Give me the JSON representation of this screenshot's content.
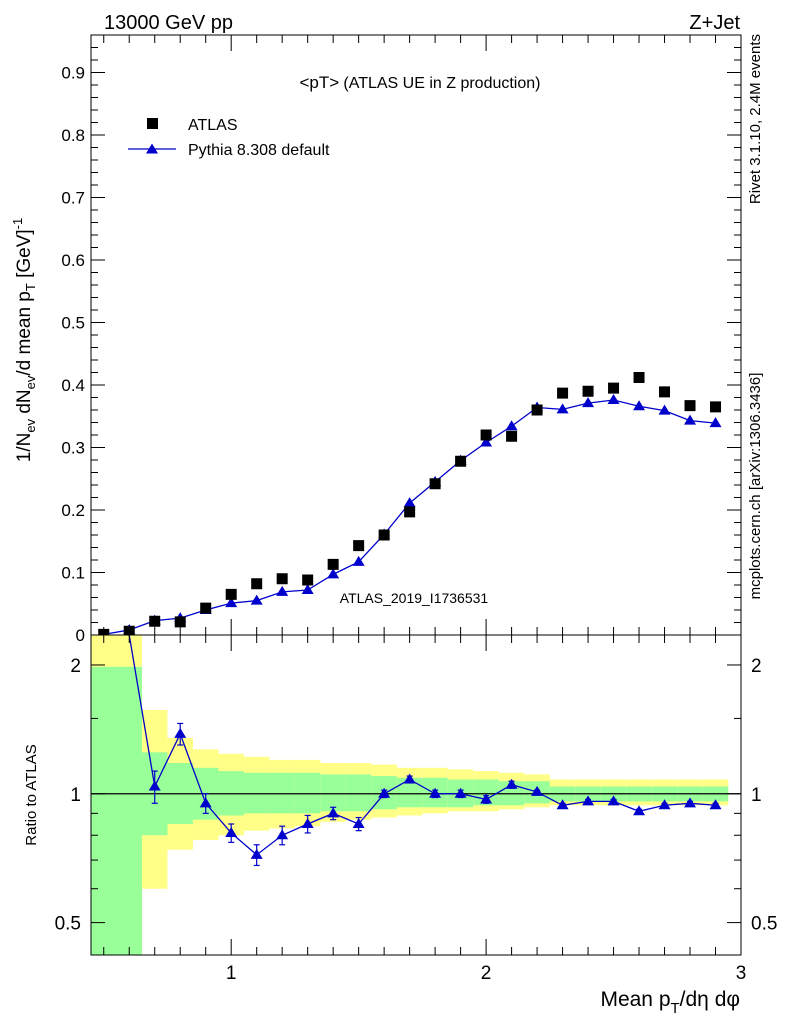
{
  "header": {
    "left": "13000 GeV pp",
    "right": "Z+Jet"
  },
  "side_labels": {
    "rivet": "Rivet 3.1.10,  2.4M events",
    "mcplots": "mcplots.cern.ch [arXiv:1306.3436]"
  },
  "watermark": "ATLAS_2019_I1736531",
  "colors": {
    "data": "#000000",
    "mc": "#0000cc",
    "band_inner": "#99ff99",
    "band_outer": "#ffff88"
  },
  "chart_data": [
    {
      "type": "scatter",
      "title": "<pT>",
      "subtitle": "(ATLAS UE in Z production)",
      "ylabel": "1/N_ev dN_ev/d mean p_T [GeV]^-1",
      "xlabel": "",
      "xlim": [
        0.45,
        3.0
      ],
      "ylim": [
        0,
        0.96
      ],
      "yticks": [
        0,
        0.1,
        0.2,
        0.3,
        0.4,
        0.5,
        0.6,
        0.7,
        0.8,
        0.9
      ],
      "ytick_labels": [
        "0",
        "0.1",
        "0.2",
        "0.3",
        "0.4",
        "0.5",
        "0.6",
        "0.7",
        "0.8",
        "0.9"
      ],
      "legend_placement": "top-left",
      "x": [
        0.5,
        0.6,
        0.7,
        0.8,
        0.9,
        1.0,
        1.1,
        1.2,
        1.3,
        1.4,
        1.5,
        1.6,
        1.7,
        1.8,
        1.9,
        2.0,
        2.1,
        2.2,
        2.3,
        2.4,
        2.5,
        2.6,
        2.7,
        2.8,
        2.9
      ],
      "series": [
        {
          "name": "ATLAS",
          "marker": "square",
          "values": [
            0.001,
            0.006,
            0.022,
            0.021,
            0.043,
            0.065,
            0.082,
            0.09,
            0.088,
            0.113,
            0.143,
            0.16,
            0.197,
            0.242,
            0.278,
            0.32,
            0.318,
            0.36,
            0.387,
            0.39,
            0.395,
            0.412,
            0.389,
            0.367,
            0.365
          ]
        },
        {
          "name": "Pythia 8.308 default",
          "marker": "triangle",
          "values": [
            0.001,
            0.008,
            0.023,
            0.027,
            0.04,
            0.051,
            0.055,
            0.069,
            0.072,
            0.097,
            0.117,
            0.161,
            0.211,
            0.245,
            0.279,
            0.308,
            0.334,
            0.364,
            0.361,
            0.371,
            0.376,
            0.366,
            0.359,
            0.343,
            0.339
          ]
        }
      ]
    },
    {
      "type": "line",
      "ylabel": "Ratio to ATLAS",
      "xlabel": "Mean p_T/dη dφ",
      "xlim": [
        0.45,
        3.0
      ],
      "ylim": [
        0.42,
        2.35
      ],
      "log_y": true,
      "yticks": [
        0.5,
        1,
        2
      ],
      "ytick_labels": [
        "0.5",
        "1",
        "2"
      ],
      "xticks": [
        1,
        2,
        3
      ],
      "xtick_labels": [
        "1",
        "2",
        "3"
      ],
      "bin_edges": [
        0.45,
        0.55,
        0.65,
        0.75,
        0.85,
        0.95,
        1.05,
        1.15,
        1.25,
        1.35,
        1.45,
        1.55,
        1.65,
        1.75,
        1.85,
        1.95,
        2.05,
        2.15,
        2.25,
        2.35,
        2.45,
        2.55,
        2.65,
        2.75,
        2.85,
        2.95
      ],
      "band_inner_hi": [
        1.98,
        1.98,
        1.25,
        1.18,
        1.15,
        1.13,
        1.12,
        1.12,
        1.12,
        1.11,
        1.11,
        1.1,
        1.09,
        1.09,
        1.08,
        1.08,
        1.07,
        1.07,
        1.04,
        1.04,
        1.04,
        1.04,
        1.04,
        1.04,
        1.04
      ],
      "band_inner_lo": [
        0.3,
        0.3,
        0.8,
        0.85,
        0.87,
        0.89,
        0.9,
        0.9,
        0.9,
        0.91,
        0.91,
        0.92,
        0.93,
        0.93,
        0.93,
        0.94,
        0.94,
        0.95,
        0.96,
        0.96,
        0.96,
        0.96,
        0.96,
        0.96,
        0.96
      ],
      "band_outer_hi": [
        2.5,
        2.5,
        1.57,
        1.35,
        1.27,
        1.24,
        1.22,
        1.2,
        1.2,
        1.18,
        1.18,
        1.17,
        1.15,
        1.15,
        1.14,
        1.13,
        1.12,
        1.11,
        1.08,
        1.08,
        1.08,
        1.08,
        1.08,
        1.08,
        1.08
      ],
      "band_outer_lo": [
        0.3,
        0.3,
        0.6,
        0.74,
        0.78,
        0.8,
        0.82,
        0.83,
        0.84,
        0.86,
        0.87,
        0.88,
        0.89,
        0.9,
        0.91,
        0.91,
        0.92,
        0.93,
        0.94,
        0.94,
        0.94,
        0.94,
        0.94,
        0.94,
        0.94
      ],
      "x": [
        0.5,
        0.6,
        0.7,
        0.8,
        0.9,
        1.0,
        1.1,
        1.2,
        1.3,
        1.4,
        1.5,
        1.6,
        1.7,
        1.8,
        1.9,
        2.0,
        2.1,
        2.2,
        2.3,
        2.4,
        2.5,
        2.6,
        2.7,
        2.8,
        2.9
      ],
      "series": [
        {
          "name": "Pythia 8.308 default",
          "values": [
            null,
            3.0,
            1.04,
            1.38,
            0.95,
            0.81,
            0.72,
            0.8,
            0.85,
            0.9,
            0.85,
            1.0,
            1.08,
            1.0,
            1.0,
            0.97,
            1.05,
            1.01,
            0.94,
            0.96,
            0.96,
            0.91,
            0.94,
            0.95,
            0.94
          ],
          "errors": [
            0,
            0,
            0.09,
            0.08,
            0.05,
            0.04,
            0.04,
            0.04,
            0.04,
            0.03,
            0.03,
            0.02,
            0.02,
            0.02,
            0.02,
            0.02,
            0.02,
            0.01,
            0.01,
            0.01,
            0.01,
            0.01,
            0.01,
            0.01,
            0.01
          ]
        }
      ]
    }
  ]
}
